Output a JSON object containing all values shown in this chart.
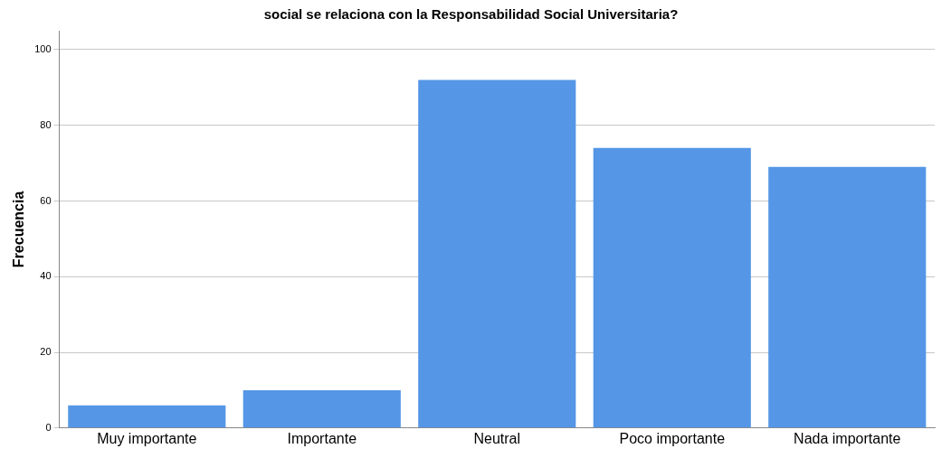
{
  "chart_data": {
    "type": "bar",
    "title": "social se relaciona con la Responsabilidad Social Universitaria?",
    "ylabel": "Frecuencia",
    "categories": [
      "Muy importante",
      "Importante",
      "Neutral",
      "Poco importante",
      "Nada importante"
    ],
    "values": [
      6,
      10,
      92,
      74,
      69
    ],
    "color": "#5596e6",
    "ylim": [
      0,
      105
    ],
    "yticks": [
      0,
      20,
      40,
      60,
      80,
      100
    ],
    "grid": "y",
    "legend": false
  }
}
